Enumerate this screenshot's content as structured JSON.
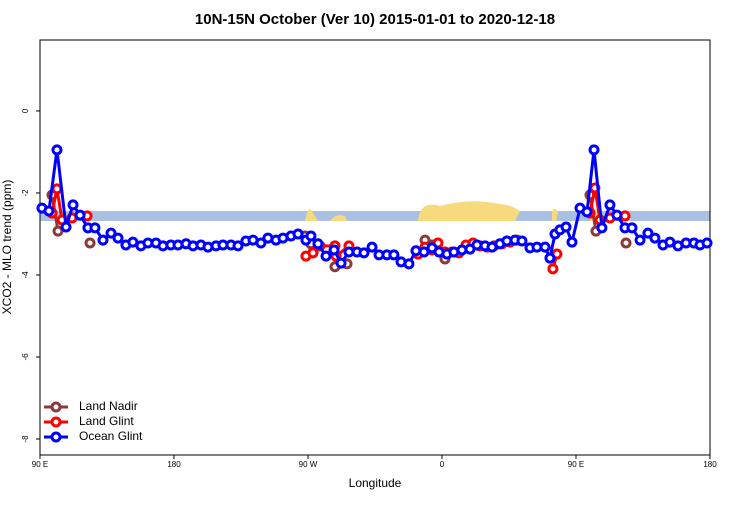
{
  "chart_data": {
    "type": "line",
    "title": "10N-15N October (Ver 10)   2015-01-01 to 2020-12-18",
    "x_label": "Longitude",
    "y_label": "XCO2 - MLO trend (ppm)",
    "xlim": [
      90,
      540
    ],
    "ylim": [
      -8.39,
      1.73
    ],
    "xticks": [
      {
        "value": 90,
        "label": "90 E"
      },
      180,
      {
        "value": 270,
        "label": "90 W"
      },
      {
        "value": 360,
        "label": "0"
      },
      {
        "value": 450,
        "label": "90 E"
      },
      {
        "value": 540,
        "label": "180"
      }
    ],
    "yticks": [
      0,
      -2,
      -4,
      -6,
      -8
    ],
    "legend": "bottom-left",
    "series": [
      {
        "name": "Land Nadir",
        "color": "#8b3a3a",
        "x": [
          98.1,
          102.1,
          null,
          123.6,
          null,
          268.0,
          272.0,
          273.3,
          null,
          288.1,
          296.2,
          null,
          348.6,
          353.3,
          362.0,
          null,
          459.4,
          463.4,
          null,
          483.6
        ],
        "values": [
          -2.05,
          -2.93,
          null,
          -3.22,
          null,
          -3.05,
          -3.24,
          -3.46,
          null,
          -3.8,
          -3.73,
          null,
          -3.15,
          -3.27,
          -3.61,
          null,
          -2.05,
          -2.93,
          null,
          -3.22
        ]
      },
      {
        "name": "Land Glint",
        "color": "#ff0000",
        "x": [
          98.1,
          101.4,
          104.8,
          111.5,
          121.6,
          null,
          268.6,
          273.3,
          278.0,
          288.1,
          288.8,
          297.5,
          null,
          343.9,
          348.6,
          353.3,
          357.3,
          362.0,
          366.7,
          371.4,
          376.1,
          380.8,
          385.5,
          390.2,
          394.9,
          400.3,
          405.7,
          410.3,
          null,
          434.5,
          437.2,
          null,
          459.4,
          462.7,
          466.1,
          472.8,
          482.9
        ],
        "values": [
          -2.49,
          -1.9,
          -2.66,
          -2.61,
          -2.56,
          null,
          -3.54,
          -3.46,
          -3.29,
          -3.29,
          -3.54,
          -3.29,
          null,
          -3.49,
          -3.32,
          -3.39,
          -3.22,
          -3.44,
          -3.44,
          -3.46,
          -3.27,
          -3.22,
          -3.29,
          -3.32,
          -3.29,
          -3.24,
          -3.2,
          -3.15,
          null,
          -3.85,
          -3.49,
          null,
          -2.49,
          -1.88,
          -2.66,
          -2.61,
          -2.56
        ]
      },
      {
        "name": "Ocean Glint",
        "color": "#0000ff",
        "x": [
          91.3,
          96.0,
          101.4,
          107.5,
          112.2,
          116.9,
          122.2,
          126.9,
          132.3,
          137.7,
          142.4,
          147.7,
          152.4,
          157.8,
          162.5,
          167.9,
          172.6,
          177.9,
          182.7,
          188.1,
          192.8,
          198.1,
          202.8,
          208.2,
          212.9,
          218.3,
          223.0,
          228.3,
          233.1,
          238.4,
          243.1,
          248.5,
          253.2,
          258.6,
          263.3,
          268.6,
          272.0,
          276.7,
          282.1,
          287.5,
          292.2,
          297.5,
          302.9,
          307.6,
          313.0,
          317.7,
          323.0,
          327.7,
          332.5,
          337.8,
          342.5,
          347.9,
          353.3,
          358.0,
          363.3,
          368.0,
          373.4,
          378.8,
          383.5,
          388.9,
          393.6,
          398.9,
          403.6,
          409.0,
          413.7,
          419.1,
          423.8,
          429.2,
          432.5,
          435.9,
          439.2,
          443.3,
          447.3,
          452.7,
          457.4,
          462.1,
          467.4,
          472.8,
          477.5,
          482.9,
          487.6,
          493.0,
          498.3,
          503.0,
          508.4,
          513.1,
          518.5,
          523.9,
          529.2,
          533.3,
          538.0
        ],
        "values": [
          -2.37,
          -2.44,
          -0.95,
          -2.83,
          -2.29,
          -2.54,
          -2.85,
          -2.85,
          -3.15,
          -2.98,
          -3.1,
          -3.27,
          -3.2,
          -3.29,
          -3.22,
          -3.22,
          -3.29,
          -3.27,
          -3.27,
          -3.24,
          -3.29,
          -3.27,
          -3.32,
          -3.29,
          -3.27,
          -3.27,
          -3.29,
          -3.17,
          -3.15,
          -3.22,
          -3.1,
          -3.15,
          -3.1,
          -3.05,
          -3.0,
          -3.15,
          -3.05,
          -3.24,
          -3.54,
          -3.39,
          -3.71,
          -3.44,
          -3.44,
          -3.46,
          -3.32,
          -3.51,
          -3.51,
          -3.51,
          -3.68,
          -3.73,
          -3.41,
          -3.44,
          -3.34,
          -3.44,
          -3.49,
          -3.44,
          -3.39,
          -3.37,
          -3.27,
          -3.29,
          -3.32,
          -3.24,
          -3.17,
          -3.15,
          -3.17,
          -3.34,
          -3.32,
          -3.32,
          -3.59,
          -3.0,
          -2.9,
          -2.83,
          -3.2,
          -2.37,
          -2.46,
          -0.95,
          -2.85,
          -2.29,
          -2.54,
          -2.85,
          -2.85,
          -3.15,
          -2.98,
          -3.1,
          -3.27,
          -3.2,
          -3.29,
          -3.22,
          -3.22,
          -3.27,
          -3.22
        ]
      }
    ]
  }
}
